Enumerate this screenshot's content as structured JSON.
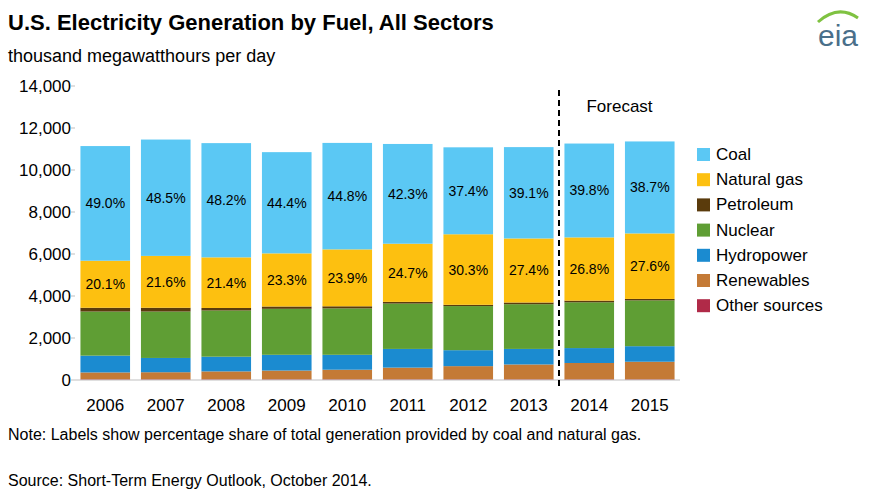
{
  "chart_data": {
    "type": "bar",
    "stacked": true,
    "grid": false,
    "logo": "eia",
    "title": "U.S. Electricity Generation by Fuel, All Sectors",
    "subtitle": "thousand megawatthours per day",
    "note": "Note: Labels show percentage share of total generation provided by coal and natural gas.",
    "source": "Source: Short-Term Energy Outlook, October 2014.",
    "forecast": {
      "label": "Forecast",
      "start": "2014"
    },
    "categories": [
      "2006",
      "2007",
      "2008",
      "2009",
      "2010",
      "2011",
      "2012",
      "2013",
      "2014",
      "2015"
    ],
    "ylim": [
      0,
      14000
    ],
    "yticks": [
      0,
      {
        "value": 2000,
        "label": "2,000"
      },
      {
        "value": 4000,
        "label": "4,000"
      },
      {
        "value": 6000,
        "label": "6,000"
      },
      {
        "value": 8000,
        "label": "8,000"
      },
      {
        "value": 10000,
        "label": "10,000"
      },
      {
        "value": 12000,
        "label": "12,000"
      },
      {
        "value": 14000,
        "label": "14,000"
      }
    ],
    "series": [
      {
        "name": "Coal",
        "color": "#5bc8f4",
        "values": [
          5460,
          5540,
          5440,
          4820,
          5070,
          4750,
          4140,
          4350,
          4470,
          4380
        ],
        "share_labels": [
          "49.0%",
          "48.5%",
          "48.2%",
          "44.4%",
          "44.8%",
          "42.3%",
          "37.4%",
          "39.1%",
          "39.8%",
          "38.7%"
        ]
      },
      {
        "name": "Natural gas",
        "color": "#fdc010",
        "values": [
          2240,
          2470,
          2410,
          2530,
          2710,
          2770,
          3360,
          3050,
          3010,
          3120
        ],
        "share_labels": [
          "20.1%",
          "21.6%",
          "21.4%",
          "23.3%",
          "23.9%",
          "24.7%",
          "30.3%",
          "27.4%",
          "26.8%",
          "27.6%"
        ]
      },
      {
        "name": "Petroleum",
        "color": "#5a3b0c",
        "values": [
          180,
          180,
          120,
          110,
          100,
          80,
          60,
          80,
          80,
          70
        ]
      },
      {
        "name": "Nuclear",
        "color": "#5f9e34",
        "values": [
          2100,
          2210,
          2200,
          2190,
          2210,
          2160,
          2100,
          2130,
          2180,
          2180
        ]
      },
      {
        "name": "Hydropower",
        "color": "#1b8bd0",
        "values": [
          800,
          680,
          700,
          750,
          710,
          890,
          760,
          740,
          710,
          740
        ]
      },
      {
        "name": "Renewables",
        "color": "#c47a36",
        "values": [
          330,
          340,
          380,
          420,
          460,
          560,
          630,
          710,
          780,
          840
        ]
      },
      {
        "name": "Other sources",
        "color": "#b02a48",
        "values": [
          30,
          30,
          30,
          30,
          30,
          30,
          30,
          30,
          30,
          30
        ]
      }
    ]
  }
}
